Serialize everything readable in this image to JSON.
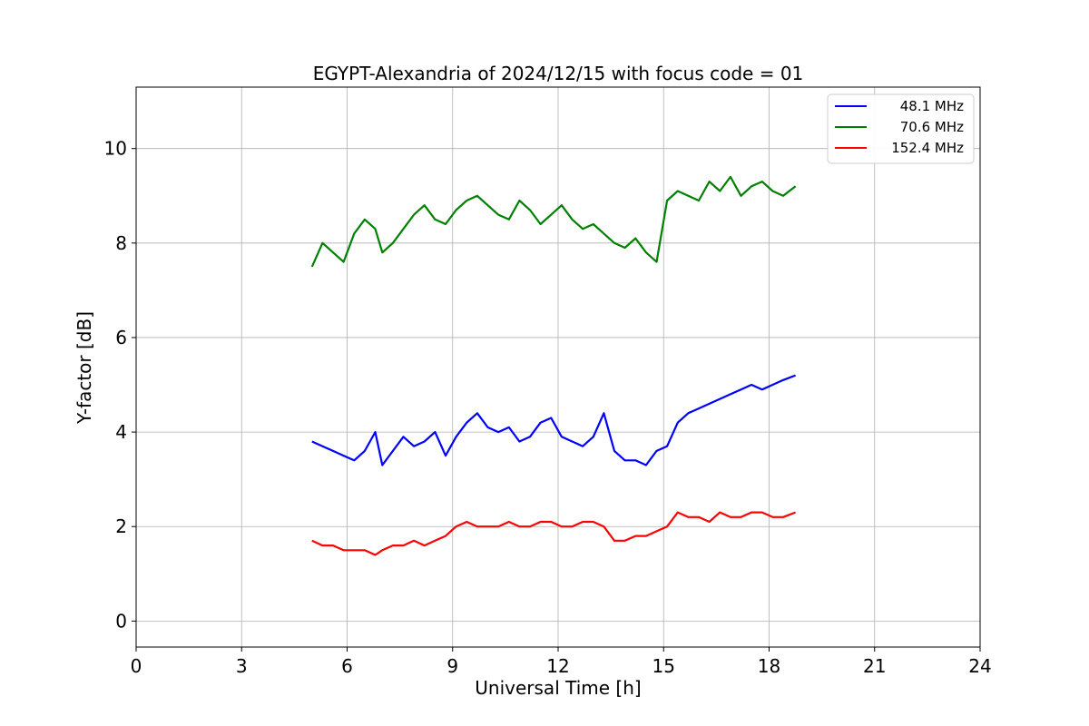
{
  "chart_data": {
    "type": "line",
    "title": "EGYPT-Alexandria of 2024/12/15 with focus code = 01",
    "xlabel": "Universal Time [h]",
    "ylabel": "Y-factor [dB]",
    "xlim": [
      0,
      24
    ],
    "ylim": [
      -0.55,
      11.3
    ],
    "xticks": [
      0,
      3,
      6,
      9,
      12,
      15,
      18,
      21,
      24
    ],
    "yticks": [
      0,
      2,
      4,
      6,
      8,
      10
    ],
    "grid": true,
    "legend_position": "top-right",
    "series": [
      {
        "name": "48.1 MHz",
        "color": "#0000ff",
        "x": [
          5.0,
          5.3,
          5.6,
          5.9,
          6.2,
          6.5,
          6.8,
          7.0,
          7.3,
          7.6,
          7.9,
          8.2,
          8.5,
          8.8,
          9.1,
          9.4,
          9.7,
          10.0,
          10.3,
          10.6,
          10.9,
          11.2,
          11.5,
          11.8,
          12.1,
          12.4,
          12.7,
          13.0,
          13.3,
          13.6,
          13.9,
          14.2,
          14.5,
          14.8,
          15.1,
          15.4,
          15.7,
          16.0,
          16.3,
          16.6,
          16.9,
          17.2,
          17.5,
          17.8,
          18.1,
          18.4,
          18.75
        ],
        "values": [
          3.8,
          3.7,
          3.6,
          3.5,
          3.4,
          3.6,
          4.0,
          3.3,
          3.6,
          3.9,
          3.7,
          3.8,
          4.0,
          3.5,
          3.9,
          4.2,
          4.4,
          4.1,
          4.0,
          4.1,
          3.8,
          3.9,
          4.2,
          4.3,
          3.9,
          3.8,
          3.7,
          3.9,
          4.4,
          3.6,
          3.4,
          3.4,
          3.3,
          3.6,
          3.7,
          4.2,
          4.4,
          4.5,
          4.6,
          4.7,
          4.8,
          4.9,
          5.0,
          4.9,
          5.0,
          5.1,
          5.2
        ]
      },
      {
        "name": "70.6 MHz",
        "color": "#008000",
        "x": [
          5.0,
          5.3,
          5.6,
          5.9,
          6.2,
          6.5,
          6.8,
          7.0,
          7.3,
          7.6,
          7.9,
          8.2,
          8.5,
          8.8,
          9.1,
          9.4,
          9.7,
          10.0,
          10.3,
          10.6,
          10.9,
          11.2,
          11.5,
          11.8,
          12.1,
          12.4,
          12.7,
          13.0,
          13.3,
          13.6,
          13.9,
          14.2,
          14.5,
          14.8,
          15.1,
          15.4,
          15.7,
          16.0,
          16.3,
          16.6,
          16.9,
          17.2,
          17.5,
          17.8,
          18.1,
          18.4,
          18.75
        ],
        "values": [
          7.5,
          8.0,
          7.8,
          7.6,
          8.2,
          8.5,
          8.3,
          7.8,
          8.0,
          8.3,
          8.6,
          8.8,
          8.5,
          8.4,
          8.7,
          8.9,
          9.0,
          8.8,
          8.6,
          8.5,
          8.9,
          8.7,
          8.4,
          8.6,
          8.8,
          8.5,
          8.3,
          8.4,
          8.2,
          8.0,
          7.9,
          8.1,
          7.8,
          7.6,
          8.9,
          9.1,
          9.0,
          8.9,
          9.3,
          9.1,
          9.4,
          9.0,
          9.2,
          9.3,
          9.1,
          9.0,
          9.2
        ]
      },
      {
        "name": "152.4 MHz",
        "color": "#ff0000",
        "x": [
          5.0,
          5.3,
          5.6,
          5.9,
          6.2,
          6.5,
          6.8,
          7.0,
          7.3,
          7.6,
          7.9,
          8.2,
          8.5,
          8.8,
          9.1,
          9.4,
          9.7,
          10.0,
          10.3,
          10.6,
          10.9,
          11.2,
          11.5,
          11.8,
          12.1,
          12.4,
          12.7,
          13.0,
          13.3,
          13.6,
          13.9,
          14.2,
          14.5,
          14.8,
          15.1,
          15.4,
          15.7,
          16.0,
          16.3,
          16.6,
          16.9,
          17.2,
          17.5,
          17.8,
          18.1,
          18.4,
          18.75
        ],
        "values": [
          1.7,
          1.6,
          1.6,
          1.5,
          1.5,
          1.5,
          1.4,
          1.5,
          1.6,
          1.6,
          1.7,
          1.6,
          1.7,
          1.8,
          2.0,
          2.1,
          2.0,
          2.0,
          2.0,
          2.1,
          2.0,
          2.0,
          2.1,
          2.1,
          2.0,
          2.0,
          2.1,
          2.1,
          2.0,
          1.7,
          1.7,
          1.8,
          1.8,
          1.9,
          2.0,
          2.3,
          2.2,
          2.2,
          2.1,
          2.3,
          2.2,
          2.2,
          2.3,
          2.3,
          2.2,
          2.2,
          2.3
        ]
      }
    ]
  }
}
